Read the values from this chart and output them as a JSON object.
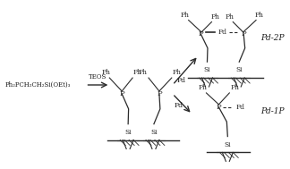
{
  "bg_color": "#ffffff",
  "line_color": "#2a2a2a",
  "text_color": "#1a1a1a",
  "figsize": [
    3.24,
    1.89
  ],
  "dpi": 100,
  "left_label": "Ph₂PCH₂CH₂Si(OEt)₃",
  "arrow_label": "TEOS",
  "pd2p_label": "Pd-2P",
  "pd1p_label": "Pd-1P",
  "pd_label": "Pd"
}
